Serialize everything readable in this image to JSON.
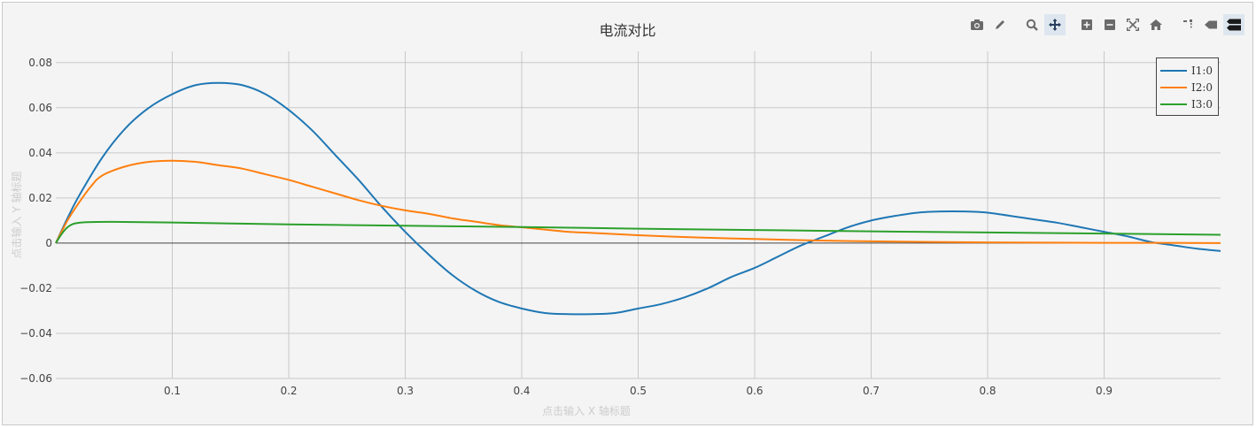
{
  "chart_data": {
    "type": "line",
    "title": "电流对比",
    "xlabel": "点击输入 X 轴标题",
    "ylabel": "点击输入 Y 轴标题",
    "xlim": [
      0,
      1.0
    ],
    "ylim": [
      -0.06,
      0.085
    ],
    "x_ticks": [
      0.1,
      0.2,
      0.3,
      0.4,
      0.5,
      0.6,
      0.7,
      0.8,
      0.9
    ],
    "x_tick_labels": [
      "0.1",
      "0.2",
      "0.3",
      "0.4",
      "0.5",
      "0.6",
      "0.7",
      "0.8",
      "0.9"
    ],
    "y_ticks": [
      -0.06,
      -0.04,
      -0.02,
      0,
      0.02,
      0.04,
      0.06,
      0.08
    ],
    "y_tick_labels": [
      "−0.06",
      "−0.04",
      "−0.02",
      "0",
      "0.02",
      "0.04",
      "0.06",
      "0.08"
    ],
    "grid": true,
    "legend_position": "top-right",
    "series": [
      {
        "name": "I1:0",
        "color": "#1f77b4",
        "x": [
          0,
          0.01,
          0.02,
          0.04,
          0.06,
          0.08,
          0.1,
          0.12,
          0.14,
          0.16,
          0.18,
          0.2,
          0.22,
          0.24,
          0.26,
          0.28,
          0.3,
          0.32,
          0.34,
          0.36,
          0.38,
          0.4,
          0.42,
          0.44,
          0.46,
          0.48,
          0.5,
          0.52,
          0.54,
          0.56,
          0.58,
          0.6,
          0.62,
          0.64,
          0.66,
          0.68,
          0.7,
          0.72,
          0.74,
          0.76,
          0.78,
          0.8,
          0.82,
          0.84,
          0.86,
          0.88,
          0.9,
          0.92,
          0.94,
          0.96,
          0.98,
          1.0
        ],
        "y": [
          0,
          0.011,
          0.021,
          0.038,
          0.051,
          0.06,
          0.066,
          0.07,
          0.071,
          0.07,
          0.066,
          0.059,
          0.05,
          0.039,
          0.028,
          0.016,
          0.005,
          -0.005,
          -0.014,
          -0.021,
          -0.026,
          -0.029,
          -0.031,
          -0.0315,
          -0.0315,
          -0.031,
          -0.029,
          -0.027,
          -0.024,
          -0.02,
          -0.015,
          -0.011,
          -0.006,
          -0.001,
          0.003,
          0.007,
          0.01,
          0.012,
          0.0135,
          0.014,
          0.014,
          0.0135,
          0.012,
          0.0105,
          0.009,
          0.007,
          0.005,
          0.003,
          0.0005,
          -0.001,
          -0.0025,
          -0.0035
        ]
      },
      {
        "name": "I2:0",
        "color": "#ff7f0e",
        "x": [
          0,
          0.01,
          0.02,
          0.03,
          0.04,
          0.06,
          0.08,
          0.1,
          0.12,
          0.14,
          0.16,
          0.18,
          0.2,
          0.22,
          0.24,
          0.26,
          0.28,
          0.3,
          0.32,
          0.34,
          0.36,
          0.38,
          0.4,
          0.42,
          0.44,
          0.46,
          0.5,
          0.55,
          0.6,
          0.65,
          0.7,
          0.75,
          0.8,
          0.85,
          0.9,
          0.95,
          1.0
        ],
        "y": [
          0,
          0.01,
          0.018,
          0.025,
          0.03,
          0.034,
          0.036,
          0.0365,
          0.036,
          0.0345,
          0.033,
          0.0305,
          0.028,
          0.025,
          0.022,
          0.019,
          0.0165,
          0.0145,
          0.013,
          0.011,
          0.0095,
          0.008,
          0.007,
          0.006,
          0.005,
          0.0045,
          0.0035,
          0.0025,
          0.0018,
          0.0012,
          0.0008,
          0.0005,
          0.0003,
          0.0002,
          0.0001,
          0.0001,
          0
        ]
      },
      {
        "name": "I3:0",
        "color": "#2ca02c",
        "x": [
          0,
          0.005,
          0.01,
          0.015,
          0.02,
          0.03,
          0.05,
          0.1,
          0.2,
          0.3,
          0.4,
          0.5,
          0.6,
          0.7,
          0.8,
          0.9,
          1.0
        ],
        "y": [
          0,
          0.004,
          0.007,
          0.0085,
          0.009,
          0.0093,
          0.0094,
          0.0091,
          0.0083,
          0.0077,
          0.0071,
          0.0064,
          0.0058,
          0.0052,
          0.0047,
          0.0042,
          0.0037
        ]
      }
    ]
  },
  "modebar": {
    "buttons": [
      {
        "name": "camera-icon",
        "glyph": "📷"
      },
      {
        "name": "pencil-icon",
        "glyph": "✎"
      },
      {
        "name": "zoom-icon",
        "glyph": "🔍"
      },
      {
        "name": "pan-icon",
        "glyph": "✥"
      },
      {
        "name": "zoom-in-icon",
        "glyph": "+"
      },
      {
        "name": "zoom-out-icon",
        "glyph": "−"
      },
      {
        "name": "autoscale-icon",
        "glyph": "⤢"
      },
      {
        "name": "home-icon",
        "glyph": "⌂"
      },
      {
        "name": "spike-lines-icon",
        "glyph": "⁐"
      },
      {
        "name": "hover-closest-icon",
        "glyph": "◀"
      },
      {
        "name": "hover-compare-icon",
        "glyph": "☰"
      }
    ]
  }
}
